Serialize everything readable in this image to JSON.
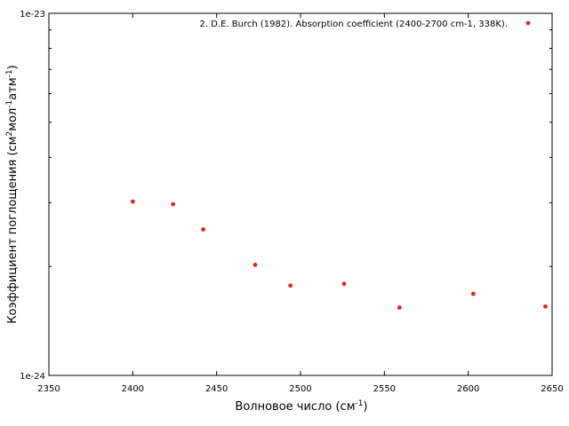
{
  "chart_data": {
    "type": "scatter",
    "title": "",
    "xlabel": {
      "text": "Волновое число (см",
      "sup": "-1",
      "tail": ")"
    },
    "ylabel": {
      "parts": [
        "Коэффициент поглощения (см",
        "2",
        "мол",
        "-1",
        "атм",
        "-1",
        ")"
      ]
    },
    "xlim": [
      2350,
      2650
    ],
    "ylim": [
      1e-24,
      1e-23
    ],
    "yscale": "log",
    "grid": false,
    "legend_position": "top-right",
    "x_ticks": [
      "2350",
      "2400",
      "2450",
      "2500",
      "2550",
      "2600",
      "2650"
    ],
    "x_tick_values": [
      2350,
      2400,
      2450,
      2500,
      2550,
      2600,
      2650
    ],
    "y_ticks": [
      "1e-24",
      "1e-23"
    ],
    "y_tick_values": [
      1e-24,
      1e-23
    ],
    "y_minor_tick_values": [
      2e-24,
      3e-24,
      4e-24,
      5e-24,
      6e-24,
      7e-24,
      8e-24,
      9e-24
    ],
    "series": [
      {
        "name": "2. D.E. Burch (1982). Absorption coefficient (2400-2700 cm-1, 338K).",
        "color": "#e0261a",
        "marker": "circle",
        "x": [
          2400,
          2424,
          2442,
          2473,
          2494,
          2526,
          2559,
          2603,
          2646
        ],
        "y": [
          3.02e-24,
          2.97e-24,
          2.53e-24,
          2.02e-24,
          1.77e-24,
          1.79e-24,
          1.54e-24,
          1.68e-24,
          1.55e-24
        ]
      }
    ]
  }
}
